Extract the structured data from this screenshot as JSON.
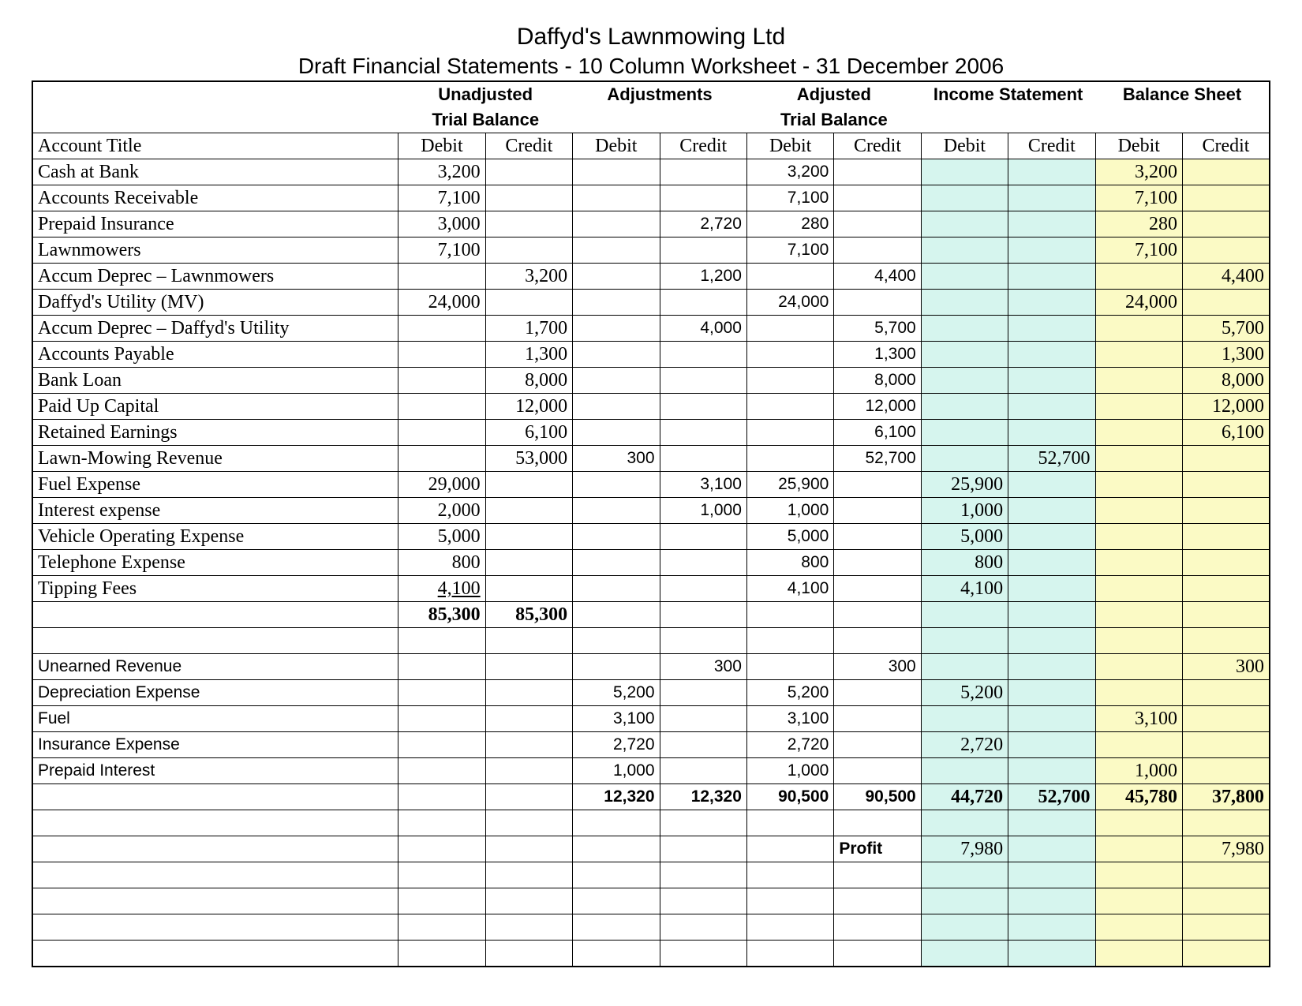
{
  "title": "Daffyd's Lawnmowing Ltd",
  "subtitle": "Draft Financial Statements - 10 Column Worksheet - 31 December 2006",
  "group_headers": {
    "g1a": "Unadjusted",
    "g1b": "Trial Balance",
    "g2": "Adjustments",
    "g3a": "Adjusted",
    "g3b": "Trial Balance",
    "g4": "Income Statement",
    "g5": "Balance Sheet"
  },
  "dc_headers": {
    "account": "Account Title",
    "debit": "Debit",
    "credit": "Credit"
  },
  "colors": {
    "income_statement_bg": "#d6f5ee",
    "balance_sheet_bg": "#fbfac5",
    "border": "#000000",
    "background": "#ffffff"
  },
  "rows": [
    {
      "acct": "Cash at Bank",
      "utb_d": "3,200",
      "utb_c": "",
      "adj_d": "",
      "adj_c": "",
      "atb_d": "3,200",
      "atb_c": "",
      "is_d": "",
      "is_c": "",
      "bs_d": "3,200",
      "bs_c": ""
    },
    {
      "acct": "Accounts Receivable",
      "utb_d": "7,100",
      "utb_c": "",
      "adj_d": "",
      "adj_c": "",
      "atb_d": "7,100",
      "atb_c": "",
      "is_d": "",
      "is_c": "",
      "bs_d": "7,100",
      "bs_c": ""
    },
    {
      "acct": "Prepaid Insurance",
      "utb_d": "3,000",
      "utb_c": "",
      "adj_d": "",
      "adj_c": "2,720",
      "atb_d": "280",
      "atb_c": "",
      "is_d": "",
      "is_c": "",
      "bs_d": "280",
      "bs_c": ""
    },
    {
      "acct": "Lawnmowers",
      "utb_d": "7,100",
      "utb_c": "",
      "adj_d": "",
      "adj_c": "",
      "atb_d": "7,100",
      "atb_c": "",
      "is_d": "",
      "is_c": "",
      "bs_d": "7,100",
      "bs_c": ""
    },
    {
      "acct": "Accum Deprec – Lawnmowers",
      "utb_d": "",
      "utb_c": "3,200",
      "adj_d": "",
      "adj_c": "1,200",
      "atb_d": "",
      "atb_c": "4,400",
      "is_d": "",
      "is_c": "",
      "bs_d": "",
      "bs_c": "4,400"
    },
    {
      "acct": "Daffyd's Utility (MV)",
      "utb_d": "24,000",
      "utb_c": "",
      "adj_d": "",
      "adj_c": "",
      "atb_d": "24,000",
      "atb_c": "",
      "is_d": "",
      "is_c": "",
      "bs_d": "24,000",
      "bs_c": ""
    },
    {
      "acct": "Accum Deprec – Daffyd's Utility",
      "utb_d": "",
      "utb_c": "1,700",
      "adj_d": "",
      "adj_c": "4,000",
      "atb_d": "",
      "atb_c": "5,700",
      "is_d": "",
      "is_c": "",
      "bs_d": "",
      "bs_c": "5,700"
    },
    {
      "acct": "Accounts Payable",
      "utb_d": "",
      "utb_c": "1,300",
      "adj_d": "",
      "adj_c": "",
      "atb_d": "",
      "atb_c": "1,300",
      "is_d": "",
      "is_c": "",
      "bs_d": "",
      "bs_c": "1,300"
    },
    {
      "acct": "Bank Loan",
      "utb_d": "",
      "utb_c": "8,000",
      "adj_d": "",
      "adj_c": "",
      "atb_d": "",
      "atb_c": "8,000",
      "is_d": "",
      "is_c": "",
      "bs_d": "",
      "bs_c": "8,000"
    },
    {
      "acct": "Paid Up Capital",
      "utb_d": "",
      "utb_c": "12,000",
      "adj_d": "",
      "adj_c": "",
      "atb_d": "",
      "atb_c": "12,000",
      "is_d": "",
      "is_c": "",
      "bs_d": "",
      "bs_c": "12,000"
    },
    {
      "acct": "Retained Earnings",
      "utb_d": "",
      "utb_c": "6,100",
      "adj_d": "",
      "adj_c": "",
      "atb_d": "",
      "atb_c": "6,100",
      "is_d": "",
      "is_c": "",
      "bs_d": "",
      "bs_c": "6,100"
    },
    {
      "acct": "Lawn-Mowing Revenue",
      "utb_d": "",
      "utb_c": "53,000",
      "adj_d": "300",
      "adj_c": "",
      "atb_d": "",
      "atb_c": "52,700",
      "is_d": "",
      "is_c": "52,700",
      "bs_d": "",
      "bs_c": ""
    },
    {
      "acct": "Fuel Expense",
      "utb_d": "29,000",
      "utb_c": "",
      "adj_d": "",
      "adj_c": "3,100",
      "atb_d": "25,900",
      "atb_c": "",
      "is_d": "25,900",
      "is_c": "",
      "bs_d": "",
      "bs_c": ""
    },
    {
      "acct": "Interest expense",
      "utb_d": "2,000",
      "utb_c": "",
      "adj_d": "",
      "adj_c": "1,000",
      "atb_d": "1,000",
      "atb_c": "",
      "is_d": "1,000",
      "is_c": "",
      "bs_d": "",
      "bs_c": ""
    },
    {
      "acct": "Vehicle Operating Expense",
      "utb_d": "5,000",
      "utb_c": "",
      "adj_d": "",
      "adj_c": "",
      "atb_d": "5,000",
      "atb_c": "",
      "is_d": "5,000",
      "is_c": "",
      "bs_d": "",
      "bs_c": ""
    },
    {
      "acct": "Telephone Expense",
      "utb_d": "800",
      "utb_c": "",
      "adj_d": "",
      "adj_c": "",
      "atb_d": "800",
      "atb_c": "",
      "is_d": "800",
      "is_c": "",
      "bs_d": "",
      "bs_c": ""
    },
    {
      "acct": "Tipping Fees",
      "utb_d": "4,100",
      "utb_c": "",
      "adj_d": "",
      "adj_c": "",
      "atb_d": "4,100",
      "atb_c": "",
      "is_d": "4,100",
      "is_c": "",
      "bs_d": "",
      "bs_c": "",
      "underline_utbd": true
    },
    {
      "acct": "",
      "utb_d": "85,300",
      "utb_c": "85,300",
      "adj_d": "",
      "adj_c": "",
      "atb_d": "",
      "atb_c": "",
      "is_d": "",
      "is_c": "",
      "bs_d": "",
      "bs_c": "",
      "bold": true,
      "noborder_left": true
    },
    {
      "acct": "",
      "blank": true
    },
    {
      "acct": "Unearned Revenue",
      "utb_d": "",
      "utb_c": "",
      "adj_d": "",
      "adj_c": "300",
      "atb_d": "",
      "atb_c": "300",
      "is_d": "",
      "is_c": "",
      "bs_d": "",
      "bs_c": "300",
      "arial": true
    },
    {
      "acct": "Depreciation Expense",
      "utb_d": "",
      "utb_c": "",
      "adj_d": "5,200",
      "adj_c": "",
      "atb_d": "5,200",
      "atb_c": "",
      "is_d": "5,200",
      "is_c": "",
      "bs_d": "",
      "bs_c": "",
      "arial": true
    },
    {
      "acct": "Fuel",
      "utb_d": "",
      "utb_c": "",
      "adj_d": "3,100",
      "adj_c": "",
      "atb_d": "3,100",
      "atb_c": "",
      "is_d": "",
      "is_c": "",
      "bs_d": "3,100",
      "bs_c": "",
      "arial": true
    },
    {
      "acct": "Insurance Expense",
      "utb_d": "",
      "utb_c": "",
      "adj_d": "2,720",
      "adj_c": "",
      "atb_d": "2,720",
      "atb_c": "",
      "is_d": "2,720",
      "is_c": "",
      "bs_d": "",
      "bs_c": "",
      "arial": true
    },
    {
      "acct": "Prepaid Interest",
      "utb_d": "",
      "utb_c": "",
      "adj_d": "1,000",
      "adj_c": "",
      "atb_d": "1,000",
      "atb_c": "",
      "is_d": "",
      "is_c": "",
      "bs_d": "1,000",
      "bs_c": "",
      "arial": true
    },
    {
      "acct": "",
      "utb_d": "",
      "utb_c": "",
      "adj_d": "12,320",
      "adj_c": "12,320",
      "atb_d": "90,500",
      "atb_c": "90,500",
      "is_d": "44,720",
      "is_c": "52,700",
      "bs_d": "45,780",
      "bs_c": "37,800",
      "bold": true
    },
    {
      "acct": "",
      "blank": true
    },
    {
      "acct": "",
      "utb_d": "",
      "utb_c": "",
      "adj_d": "",
      "adj_c": "",
      "atb_d": "",
      "atb_c": "Profit",
      "is_d": "7,980",
      "is_c": "",
      "bs_d": "",
      "bs_c": "7,980",
      "profit_row": true
    },
    {
      "acct": "",
      "blank": true
    },
    {
      "acct": "",
      "blank": true
    },
    {
      "acct": "",
      "blank": true
    },
    {
      "acct": "",
      "blank": true
    }
  ]
}
